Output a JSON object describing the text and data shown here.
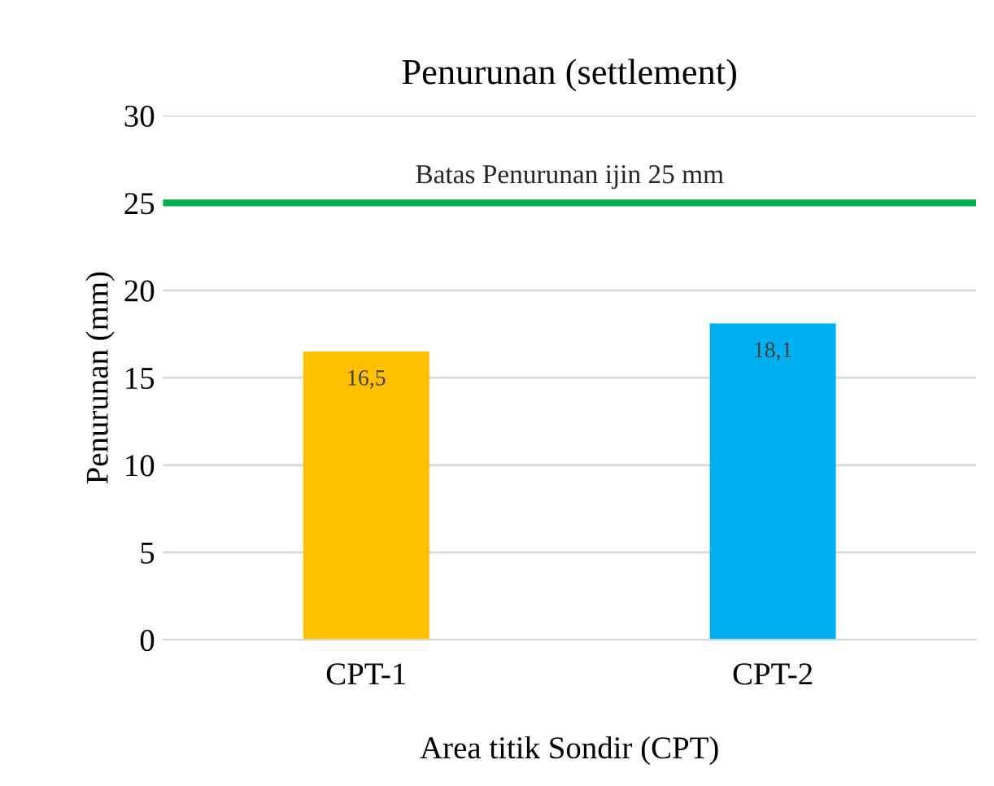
{
  "chart_data": {
    "type": "bar",
    "title": "Penurunan (settlement)",
    "xlabel": "Area titik Sondir (CPT)",
    "ylabel": "Penurunan (mm)",
    "categories": [
      "CPT-1",
      "CPT-2"
    ],
    "values": [
      16.5,
      18.1
    ],
    "colors": [
      "#ffc000",
      "#00b0f0"
    ],
    "value_labels": [
      "16,5",
      "18,1"
    ],
    "ylim": [
      0,
      30
    ],
    "yticks": [
      0,
      5,
      10,
      15,
      20,
      25,
      30
    ],
    "grid": "y",
    "ref_lines": [
      {
        "axis": "y",
        "value": 25,
        "label": "Batas Penurunan ijin 25 mm",
        "color": "#00b050",
        "line_style": "solid"
      }
    ]
  }
}
